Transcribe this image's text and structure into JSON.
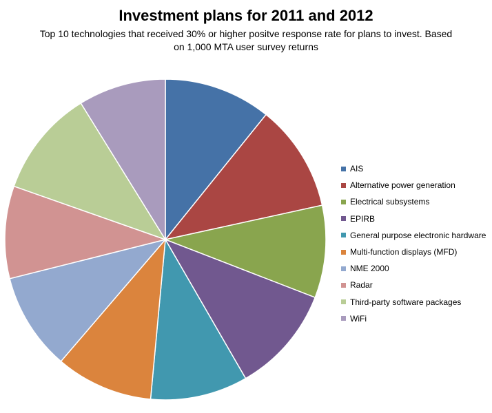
{
  "chart_data": {
    "type": "pie",
    "title": "Investment plans for 2011 and 2012",
    "subtitle": "Top 10 technologies that received 30% or higher positve response rate for plans to invest. Based on 1,000 MTA user survey returns",
    "legend_position": "right",
    "categories": [
      "AIS",
      "Alternative power generation",
      "Electrical subsystems",
      "EPIRB",
      "General purpose electronic hardware",
      "Multi-function displays (MFD)",
      "NME 2000",
      "Radar",
      "Third-party software packages",
      "WiFi"
    ],
    "values": [
      11,
      11,
      9.5,
      11,
      10,
      10,
      10,
      9.5,
      11,
      9
    ],
    "colors": [
      "#4572A7",
      "#AA4643",
      "#89A54E",
      "#71588F",
      "#4198AF",
      "#DB843D",
      "#93A9CF",
      "#D19392",
      "#B9CD96",
      "#A99BBD"
    ]
  }
}
